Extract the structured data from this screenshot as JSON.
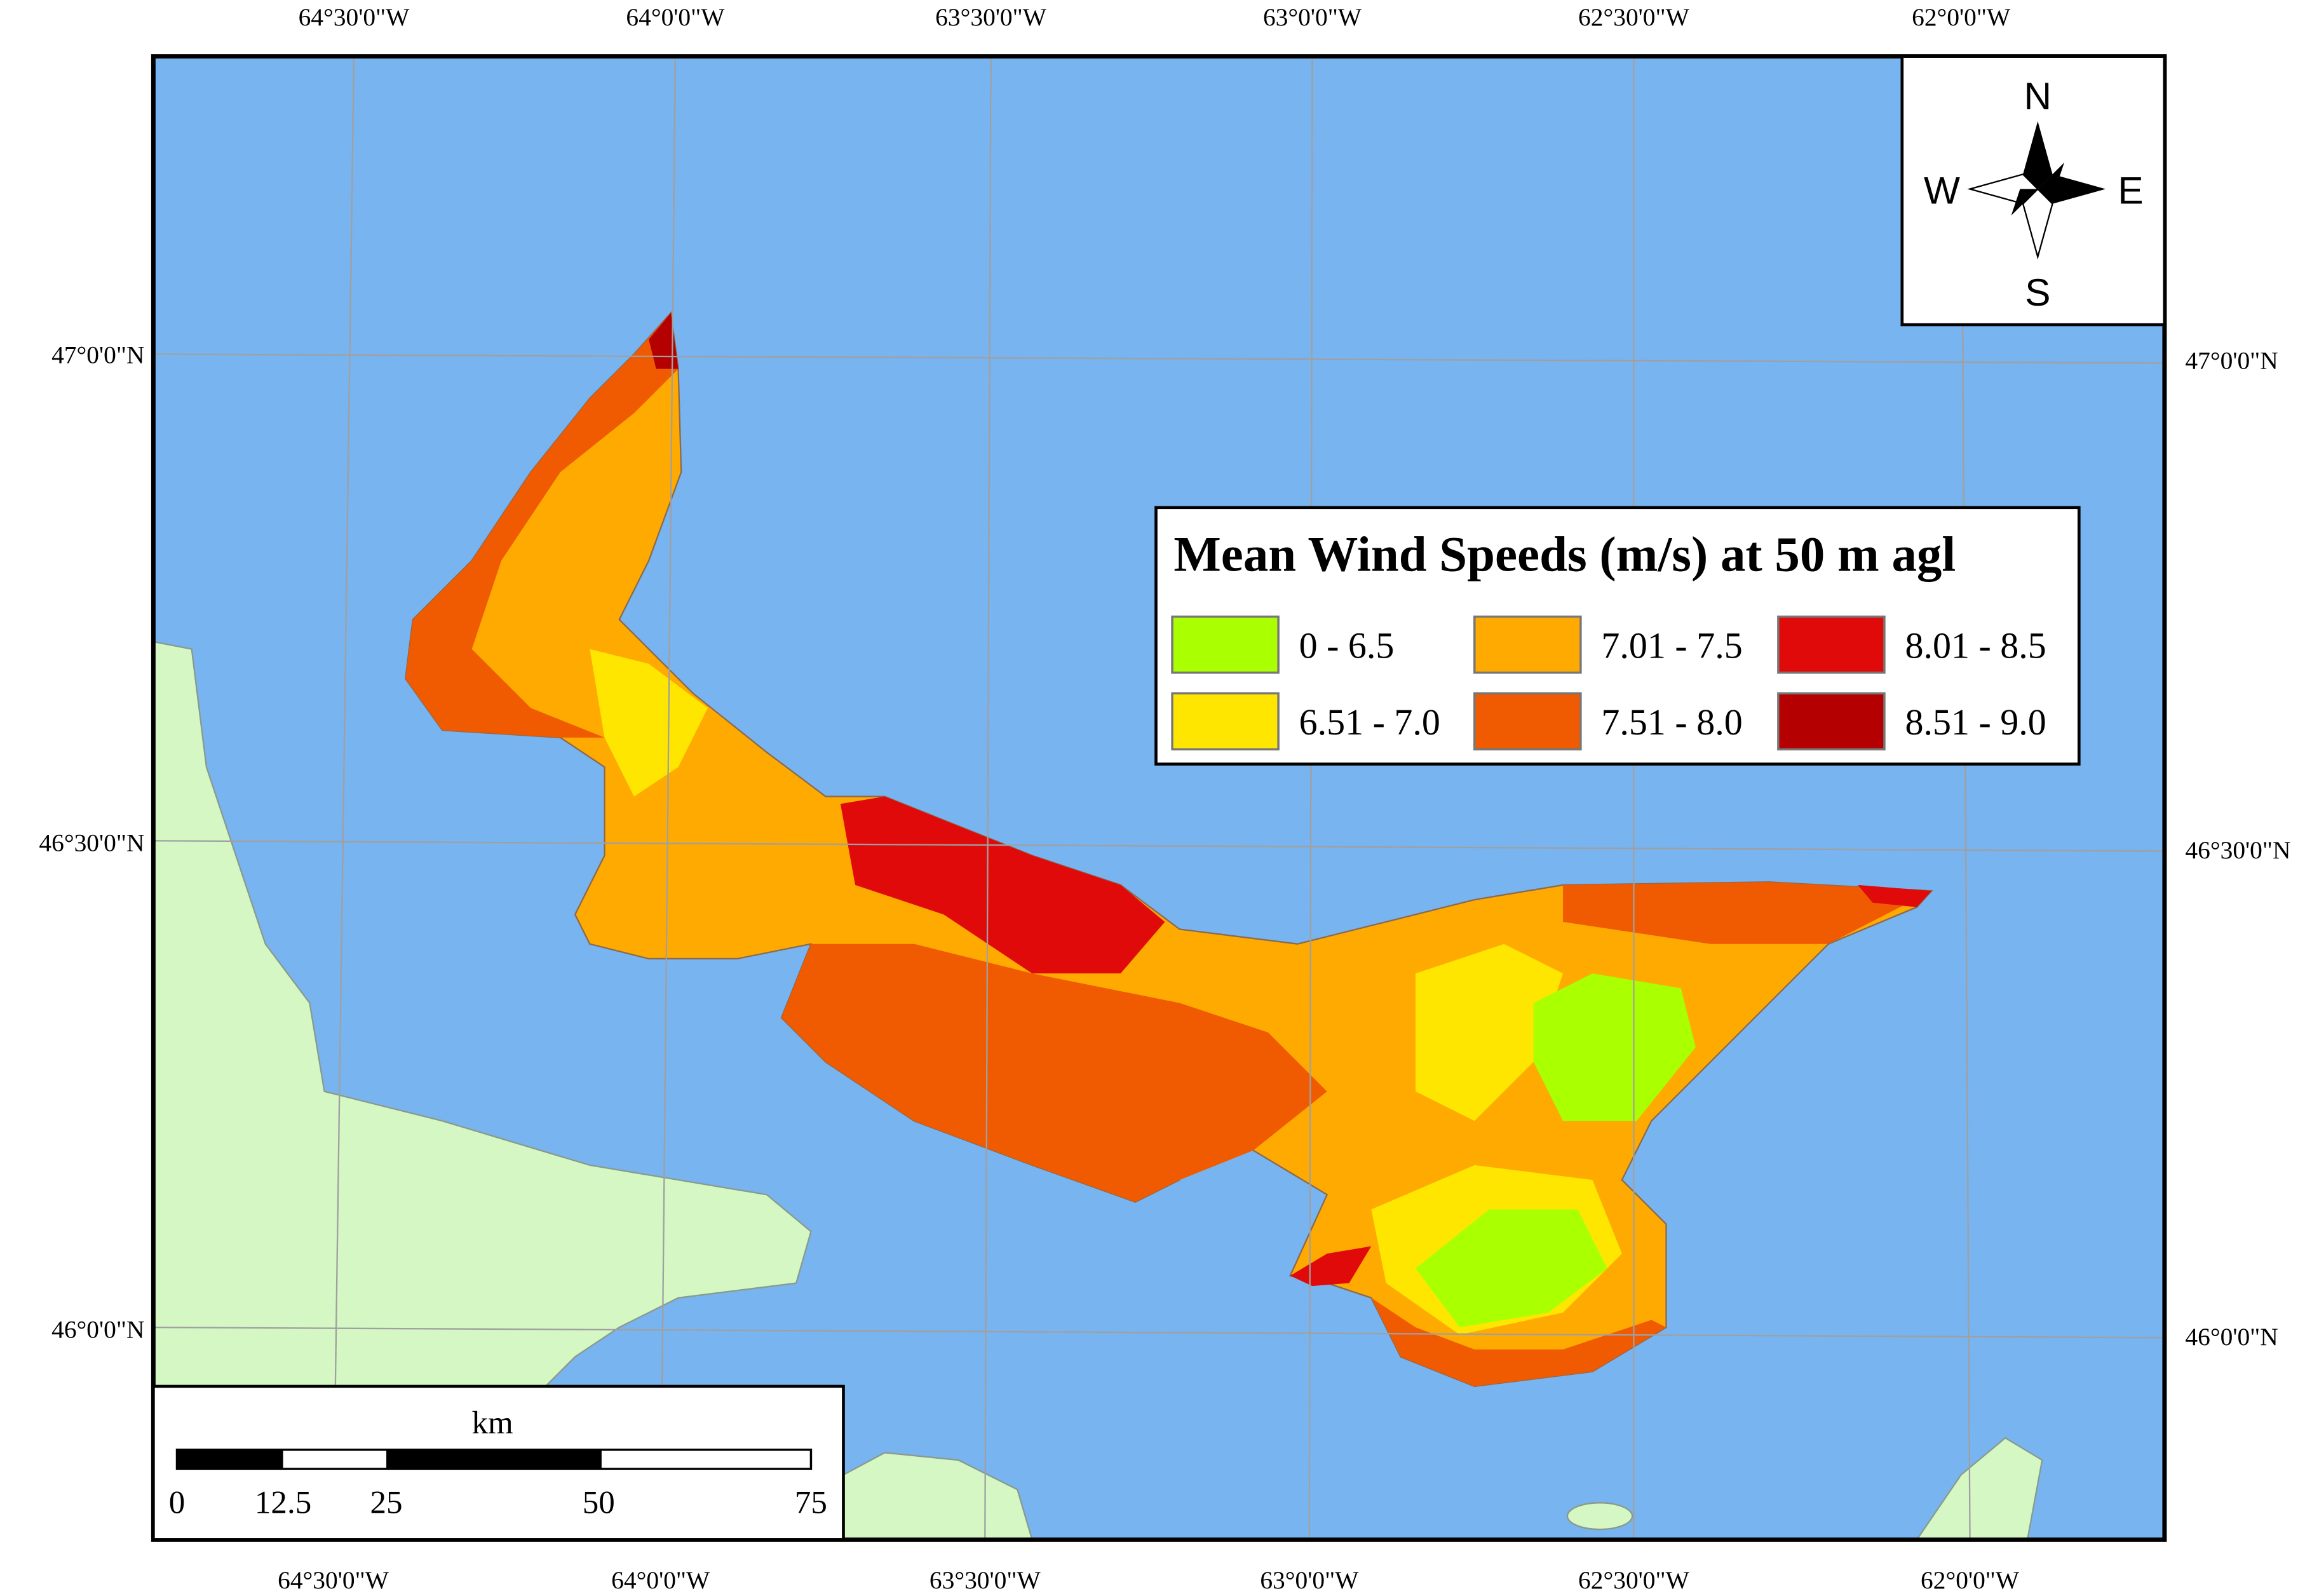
{
  "graticule": {
    "longitudes": [
      "64°30'0\"W",
      "64°0'0\"W",
      "63°30'0\"W",
      "63°0'0\"W",
      "62°30'0\"W",
      "62°0'0\"W"
    ],
    "latitudes": [
      "47°0'0\"N",
      "46°30'0\"N",
      "46°0'0\"N"
    ]
  },
  "legend": {
    "title": "Mean Wind Speeds (m/s) at 50 m agl",
    "classes": [
      {
        "label": "0 - 6.5",
        "color": "#aaff00"
      },
      {
        "label": "6.51 - 7.0",
        "color": "#ffe600"
      },
      {
        "label": "7.01 - 7.5",
        "color": "#ffaa00"
      },
      {
        "label": "7.51 - 8.0",
        "color": "#f05a00"
      },
      {
        "label": "8.01 - 8.5",
        "color": "#e10a0a"
      },
      {
        "label": "8.51 - 9.0",
        "color": "#b40000"
      }
    ]
  },
  "compass": {
    "north": "N",
    "west": "W",
    "east": "E",
    "south": "S"
  },
  "scale_bar": {
    "unit": "km",
    "ticks": [
      "0",
      "12.5",
      "25",
      "50",
      "75"
    ]
  }
}
